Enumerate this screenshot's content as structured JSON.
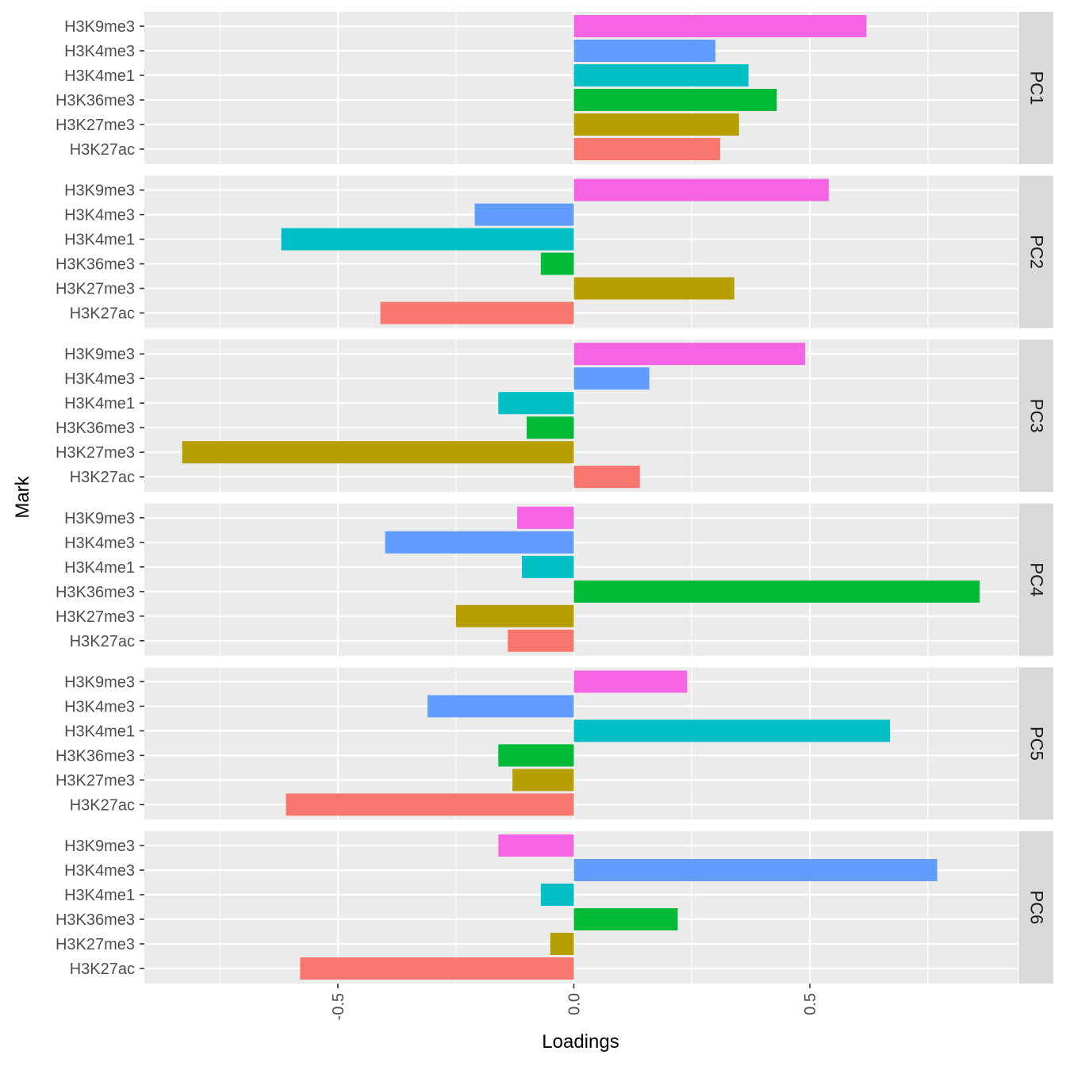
{
  "chart_data": {
    "type": "bar",
    "orientation": "horizontal",
    "xlabel": "Loadings",
    "ylabel": "Mark",
    "xlim": [
      -0.92,
      0.95
    ],
    "x_ticks": [
      -0.5,
      0.0,
      0.5
    ],
    "x_tick_labels": [
      "-0.5",
      "0.0",
      "0.5"
    ],
    "grid": true,
    "legend": "none",
    "categories": [
      "H3K9me3",
      "H3K4me3",
      "H3K4me1",
      "H3K36me3",
      "H3K27me3",
      "H3K27ac"
    ],
    "colors": {
      "H3K9me3": "#F564E3",
      "H3K4me3": "#619CFF",
      "H3K4me1": "#00BFC4",
      "H3K36me3": "#00BA38",
      "H3K27me3": "#B79F00",
      "H3K27ac": "#F8766D"
    },
    "facets": [
      {
        "label": "PC1",
        "values": [
          0.62,
          0.3,
          0.37,
          0.43,
          0.35,
          0.31
        ]
      },
      {
        "label": "PC2",
        "values": [
          0.54,
          -0.21,
          -0.62,
          -0.07,
          0.34,
          -0.41
        ]
      },
      {
        "label": "PC3",
        "values": [
          0.49,
          0.16,
          -0.16,
          -0.1,
          -0.83,
          0.14
        ]
      },
      {
        "label": "PC4",
        "values": [
          -0.12,
          -0.4,
          -0.11,
          0.86,
          -0.25,
          -0.14
        ]
      },
      {
        "label": "PC5",
        "values": [
          0.24,
          -0.31,
          0.67,
          -0.16,
          -0.13,
          -0.61
        ]
      },
      {
        "label": "PC6",
        "values": [
          -0.16,
          0.77,
          -0.07,
          0.22,
          -0.05,
          -0.58
        ]
      }
    ]
  },
  "colors": {
    "panel_bg": "#EBEBEB",
    "grid_major": "#FFFFFF",
    "strip_bg": "#D9D9D9",
    "axis_text": "#4D4D4D",
    "tick": "#333333"
  }
}
